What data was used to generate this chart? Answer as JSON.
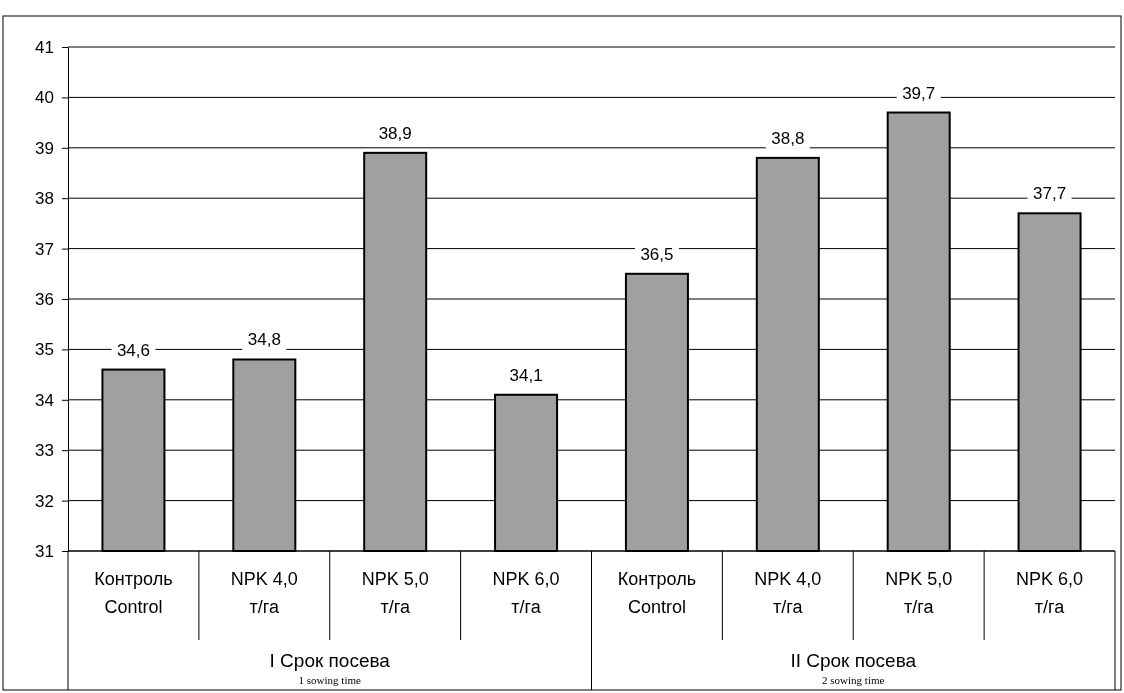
{
  "chart_data": {
    "type": "bar",
    "categories": [
      "Контроль\nControl",
      "NPK 4,0\nт/га",
      "NPK 5,0\nт/га",
      "NPK 6,0\nт/га",
      "Контроль\nControl",
      "NPK 4,0\nт/га",
      "NPK 5,0\nт/га",
      "NPK 6,0\nт/га"
    ],
    "values": [
      34.6,
      34.8,
      38.9,
      34.1,
      36.5,
      38.8,
      39.7,
      37.7
    ],
    "color": "#a0a0a0",
    "ylim": [
      31,
      41
    ],
    "yticks": [
      31,
      32,
      33,
      34,
      35,
      36,
      37,
      38,
      39,
      40,
      41
    ],
    "grid": "y",
    "value_labels": [
      "34,6",
      "34,8",
      "38,9",
      "34,1",
      "36,5",
      "38,8",
      "39,7",
      "37,7"
    ],
    "annotations": [
      "I Срок посева\n1 sowing time",
      "II Срок посева\n2 sowing time"
    ]
  }
}
